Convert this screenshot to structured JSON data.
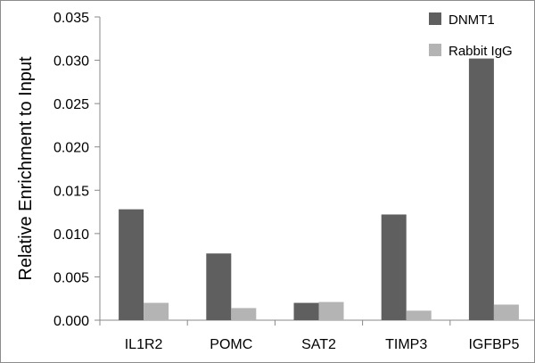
{
  "chart_data": {
    "type": "bar",
    "title": "",
    "xlabel": "",
    "ylabel": "Relative Enrichment to Input",
    "categories": [
      "IL1R2",
      "POMC",
      "SAT2",
      "TIMP3",
      "IGFBP5"
    ],
    "series": [
      {
        "name": "DNMT1",
        "color": "#5f5f5f",
        "values": [
          0.0128,
          0.0077,
          0.002,
          0.0122,
          0.0302
        ]
      },
      {
        "name": "Rabbit IgG",
        "color": "#b4b4b4",
        "values": [
          0.002,
          0.0014,
          0.0021,
          0.0011,
          0.0018
        ]
      }
    ],
    "ylim": [
      0,
      0.035
    ],
    "yticks": [
      "0.000",
      "0.005",
      "0.010",
      "0.015",
      "0.020",
      "0.025",
      "0.030",
      "0.035"
    ],
    "legend_position": "top-right",
    "grid": false
  }
}
